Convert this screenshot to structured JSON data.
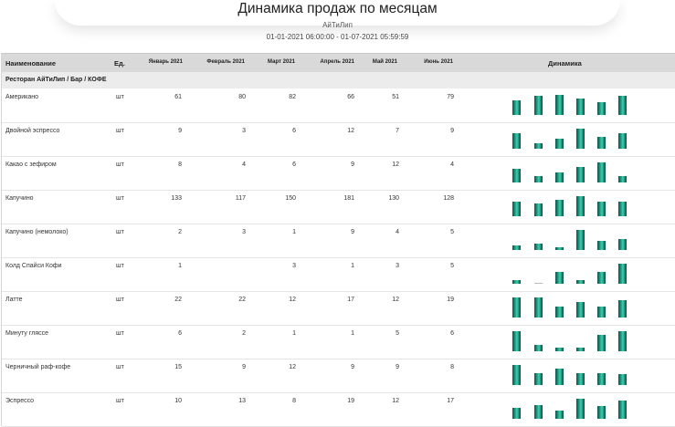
{
  "header": {
    "title": "Динамика продаж по месяцам",
    "organization": "АйТиЛип",
    "period": "01-01-2021 06:00:00 - 01-07-2021 05:59:59"
  },
  "table": {
    "columns": {
      "name": "Наименование",
      "unit": "Ед.",
      "months": [
        "Январь 2021",
        "Февраль 2021",
        "Март 2021",
        "Апрель 2021",
        "Май 2021",
        "Июнь 2021"
      ],
      "dynamics": "Динамика"
    },
    "group": "Ресторан АйТиЛип / Бар / КОФЕ",
    "rows": [
      {
        "name": "Американо",
        "unit": "шт",
        "values": [
          "61",
          "80",
          "82",
          "66",
          "51",
          "79"
        ]
      },
      {
        "name": "Двойной эспрессо",
        "unit": "шт",
        "values": [
          "9",
          "3",
          "6",
          "12",
          "7",
          "9"
        ]
      },
      {
        "name": "Какао с зефиром",
        "unit": "шт",
        "values": [
          "8",
          "4",
          "6",
          "9",
          "12",
          "4"
        ]
      },
      {
        "name": "Капучино",
        "unit": "шт",
        "values": [
          "133",
          "117",
          "150",
          "181",
          "130",
          "128"
        ]
      },
      {
        "name": "Капучино (немолоко)",
        "unit": "шт",
        "values": [
          "2",
          "3",
          "1",
          "9",
          "4",
          "5"
        ]
      },
      {
        "name": "Колд Спайси Кофи",
        "unit": "шт",
        "values": [
          "1",
          "",
          "3",
          "1",
          "3",
          "5"
        ]
      },
      {
        "name": "Латте",
        "unit": "шт",
        "values": [
          "22",
          "22",
          "12",
          "17",
          "12",
          "19"
        ]
      },
      {
        "name": "Минуту гляссе",
        "unit": "шт",
        "values": [
          "6",
          "2",
          "1",
          "1",
          "5",
          "6"
        ]
      },
      {
        "name": "Черничный раф-кофе",
        "unit": "шт",
        "values": [
          "15",
          "9",
          "12",
          "9",
          "9",
          "8"
        ]
      },
      {
        "name": "Эспрессо",
        "unit": "шт",
        "values": [
          "10",
          "13",
          "8",
          "19",
          "12",
          "17"
        ]
      }
    ]
  },
  "colors": {
    "bar": "#1a8a74",
    "header_bg": "#d9d9d9",
    "group_bg": "#ececec"
  }
}
